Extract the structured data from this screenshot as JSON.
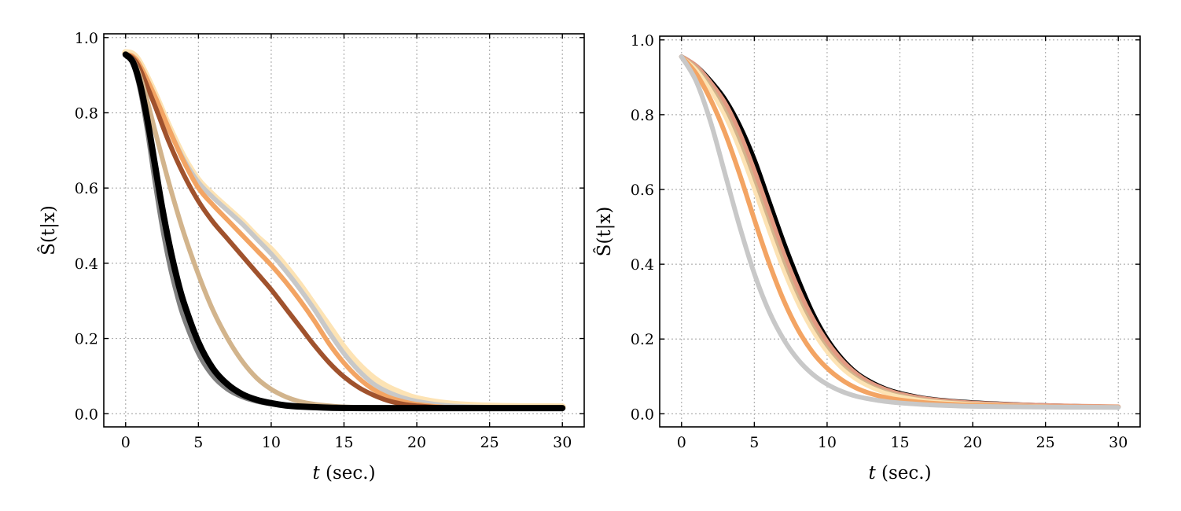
{
  "chart_data": [
    {
      "type": "line",
      "xlabel_var": "t",
      "xlabel_unit": "(sec.)",
      "ylabel": "Ŝ(t|x)",
      "xlim": [
        -1.5,
        31.5
      ],
      "ylim": [
        -0.035,
        1.01
      ],
      "xticks": [
        0,
        5,
        10,
        15,
        20,
        25,
        30
      ],
      "yticks": [
        0.0,
        0.2,
        0.4,
        0.6,
        0.8,
        1.0
      ],
      "xtick_labels": [
        "0",
        "5",
        "10",
        "15",
        "20",
        "25",
        "30"
      ],
      "ytick_labels": [
        "0.0",
        "0.2",
        "0.4",
        "0.6",
        "0.8",
        "1.0"
      ],
      "grid": true,
      "series": [
        {
          "color": "#fde3b4",
          "width": 9,
          "x": [
            0,
            0.5,
            1,
            2,
            3,
            4,
            5,
            6,
            7,
            8,
            9,
            10,
            11,
            12,
            13,
            14,
            15,
            16,
            17,
            18,
            19,
            20,
            22,
            25,
            30
          ],
          "y": [
            0.96,
            0.955,
            0.93,
            0.85,
            0.76,
            0.68,
            0.62,
            0.58,
            0.545,
            0.51,
            0.47,
            0.435,
            0.39,
            0.34,
            0.285,
            0.23,
            0.175,
            0.13,
            0.095,
            0.07,
            0.053,
            0.04,
            0.027,
            0.02,
            0.018
          ]
        },
        {
          "color": "#c8c8c8",
          "width": 6,
          "x": [
            0,
            0.5,
            1,
            2,
            3,
            4,
            5,
            6,
            7,
            8,
            9,
            10,
            11,
            12,
            13,
            14,
            15,
            16,
            17,
            18,
            19,
            20,
            22,
            25,
            30
          ],
          "y": [
            0.955,
            0.95,
            0.925,
            0.845,
            0.755,
            0.675,
            0.615,
            0.575,
            0.54,
            0.505,
            0.465,
            0.425,
            0.38,
            0.33,
            0.275,
            0.215,
            0.16,
            0.115,
            0.08,
            0.058,
            0.043,
            0.033,
            0.022,
            0.017,
            0.015
          ]
        },
        {
          "color": "#f3a463",
          "width": 6,
          "x": [
            0,
            0.5,
            1,
            2,
            3,
            4,
            5,
            6,
            7,
            8,
            9,
            10,
            11,
            12,
            13,
            14,
            15,
            16,
            17,
            18,
            19,
            20,
            22,
            25,
            30
          ],
          "y": [
            0.955,
            0.95,
            0.925,
            0.845,
            0.755,
            0.67,
            0.6,
            0.555,
            0.515,
            0.475,
            0.435,
            0.395,
            0.35,
            0.3,
            0.245,
            0.185,
            0.135,
            0.095,
            0.065,
            0.045,
            0.033,
            0.025,
            0.017,
            0.015,
            0.015
          ]
        },
        {
          "color": "#a0522d",
          "width": 6,
          "x": [
            0,
            0.5,
            1,
            2,
            3,
            4,
            5,
            6,
            7,
            8,
            9,
            10,
            11,
            12,
            13,
            14,
            15,
            16,
            17,
            18,
            19,
            20,
            22,
            25,
            30
          ],
          "y": [
            0.955,
            0.945,
            0.915,
            0.82,
            0.72,
            0.635,
            0.565,
            0.51,
            0.465,
            0.42,
            0.375,
            0.33,
            0.28,
            0.23,
            0.18,
            0.135,
            0.098,
            0.07,
            0.05,
            0.035,
            0.026,
            0.021,
            0.016,
            0.015,
            0.015
          ]
        },
        {
          "color": "#d2b48c",
          "width": 6,
          "x": [
            0,
            0.5,
            1,
            1.5,
            2,
            3,
            4,
            5,
            6,
            7,
            8,
            9,
            10,
            11,
            12,
            13,
            14,
            15,
            17,
            20,
            25,
            30
          ],
          "y": [
            0.955,
            0.94,
            0.895,
            0.83,
            0.755,
            0.61,
            0.48,
            0.37,
            0.275,
            0.2,
            0.14,
            0.095,
            0.065,
            0.045,
            0.032,
            0.025,
            0.021,
            0.018,
            0.016,
            0.015,
            0.015,
            0.015
          ]
        },
        {
          "color": "#808080",
          "width": 6,
          "x": [
            0,
            0.5,
            1,
            1.5,
            2,
            2.5,
            3,
            3.5,
            4,
            5,
            6,
            7,
            8,
            9,
            10,
            11,
            12,
            14,
            17,
            20,
            25,
            30
          ],
          "y": [
            0.955,
            0.93,
            0.86,
            0.75,
            0.62,
            0.5,
            0.4,
            0.32,
            0.255,
            0.16,
            0.1,
            0.065,
            0.045,
            0.033,
            0.026,
            0.022,
            0.019,
            0.016,
            0.015,
            0.015,
            0.015,
            0.015
          ]
        },
        {
          "color": "#000000",
          "width": 8,
          "x": [
            0,
            0.5,
            1,
            1.5,
            2,
            2.5,
            3,
            3.5,
            4,
            5,
            6,
            7,
            8,
            9,
            10,
            11,
            12,
            14,
            17,
            20,
            25,
            30
          ],
          "y": [
            0.955,
            0.935,
            0.875,
            0.78,
            0.665,
            0.55,
            0.45,
            0.365,
            0.295,
            0.19,
            0.12,
            0.078,
            0.052,
            0.037,
            0.028,
            0.022,
            0.019,
            0.016,
            0.015,
            0.015,
            0.015,
            0.015
          ]
        }
      ]
    },
    {
      "type": "line",
      "xlabel_var": "t",
      "xlabel_unit": "(sec.)",
      "ylabel": "Ŝ(t|x)",
      "xlim": [
        -1.5,
        31.5
      ],
      "ylim": [
        -0.035,
        1.01
      ],
      "xticks": [
        0,
        5,
        10,
        15,
        20,
        25,
        30
      ],
      "yticks": [
        0.0,
        0.2,
        0.4,
        0.6,
        0.8,
        1.0
      ],
      "xtick_labels": [
        "0",
        "5",
        "10",
        "15",
        "20",
        "25",
        "30"
      ],
      "ytick_labels": [
        "0.0",
        "0.2",
        "0.4",
        "0.6",
        "0.8",
        "1.0"
      ],
      "grid": true,
      "series": [
        {
          "color": "#000000",
          "width": 6,
          "x": [
            0,
            1,
            2,
            3,
            4,
            5,
            6,
            7,
            8,
            9,
            10,
            11,
            12,
            13,
            14,
            15,
            17,
            20,
            25,
            30
          ],
          "y": [
            0.955,
            0.93,
            0.89,
            0.84,
            0.77,
            0.68,
            0.57,
            0.46,
            0.36,
            0.27,
            0.2,
            0.148,
            0.11,
            0.085,
            0.067,
            0.055,
            0.04,
            0.03,
            0.022,
            0.018
          ]
        },
        {
          "color": "#e39a82",
          "width": 6,
          "x": [
            0,
            1,
            2,
            3,
            4,
            5,
            6,
            7,
            8,
            9,
            10,
            11,
            12,
            13,
            14,
            15,
            17,
            20,
            25,
            30
          ],
          "y": [
            0.955,
            0.93,
            0.885,
            0.83,
            0.75,
            0.65,
            0.54,
            0.43,
            0.335,
            0.255,
            0.192,
            0.143,
            0.107,
            0.082,
            0.065,
            0.053,
            0.039,
            0.029,
            0.022,
            0.019
          ]
        },
        {
          "color": "#d2b48c",
          "width": 5,
          "x": [
            0,
            1,
            2,
            3,
            4,
            5,
            6,
            7,
            8,
            9,
            10,
            11,
            12,
            13,
            14,
            15,
            17,
            20,
            25,
            30
          ],
          "y": [
            0.955,
            0.925,
            0.875,
            0.81,
            0.725,
            0.62,
            0.51,
            0.405,
            0.31,
            0.235,
            0.175,
            0.13,
            0.098,
            0.075,
            0.06,
            0.049,
            0.036,
            0.027,
            0.02,
            0.018
          ]
        },
        {
          "color": "#fde3b4",
          "width": 5,
          "x": [
            0,
            1,
            2,
            3,
            4,
            5,
            6,
            7,
            8,
            9,
            10,
            11,
            12,
            13,
            14,
            15,
            17,
            20,
            25,
            30
          ],
          "y": [
            0.955,
            0.92,
            0.865,
            0.795,
            0.705,
            0.6,
            0.49,
            0.385,
            0.295,
            0.222,
            0.165,
            0.122,
            0.092,
            0.071,
            0.056,
            0.046,
            0.034,
            0.026,
            0.02,
            0.018
          ]
        },
        {
          "color": "#f3a463",
          "width": 6,
          "x": [
            0,
            1,
            2,
            3,
            4,
            5,
            6,
            7,
            8,
            9,
            10,
            11,
            12,
            13,
            14,
            15,
            17,
            20,
            25,
            30
          ],
          "y": [
            0.955,
            0.91,
            0.84,
            0.75,
            0.64,
            0.52,
            0.405,
            0.305,
            0.225,
            0.165,
            0.122,
            0.091,
            0.069,
            0.054,
            0.044,
            0.037,
            0.029,
            0.023,
            0.019,
            0.018
          ]
        },
        {
          "color": "#c8c8c8",
          "width": 6,
          "x": [
            0,
            1,
            2,
            3,
            4,
            5,
            6,
            7,
            8,
            9,
            10,
            11,
            12,
            13,
            14,
            15,
            17,
            20,
            25,
            30
          ],
          "y": [
            0.955,
            0.89,
            0.78,
            0.64,
            0.5,
            0.375,
            0.275,
            0.2,
            0.145,
            0.106,
            0.079,
            0.06,
            0.047,
            0.039,
            0.033,
            0.029,
            0.024,
            0.02,
            0.018,
            0.017
          ]
        }
      ]
    }
  ]
}
